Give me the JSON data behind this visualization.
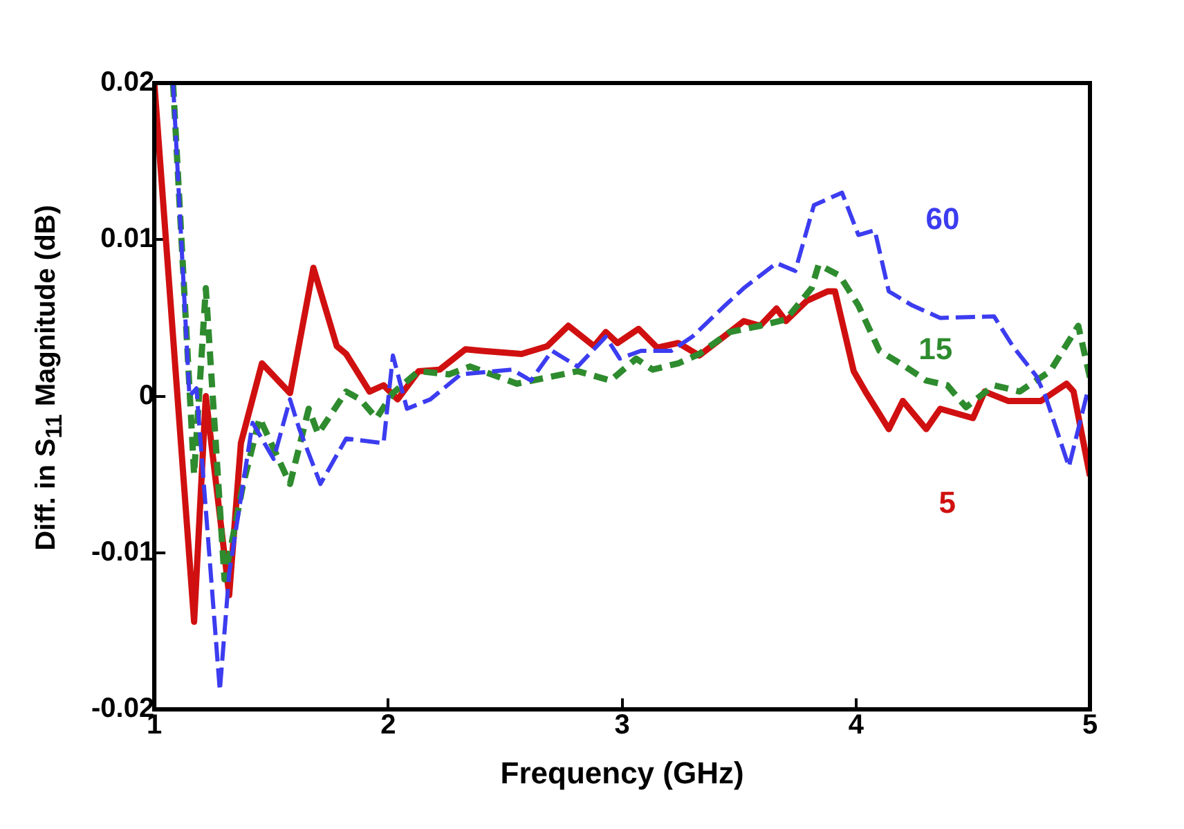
{
  "chart_data": {
    "type": "line",
    "xlabel": "Frequency (GHz)",
    "ylabel": "Diff. in S$_{11}$ Magnitude (dB)",
    "xlim": [
      1,
      5
    ],
    "xticks": [
      1,
      2,
      3,
      4,
      5
    ],
    "ylim": [
      -0.02,
      0.02
    ],
    "yticks": [
      -0.02,
      -0.01,
      0,
      0.01,
      0.02
    ],
    "grid": false,
    "legend": false,
    "marker": "none",
    "series": [
      {
        "name": "60",
        "color": "#3c3cf0",
        "line_style": "dashed",
        "x": [
          1.08,
          1.15,
          1.18,
          1.28,
          1.32,
          1.42,
          1.51,
          1.58,
          1.62,
          1.71,
          1.82,
          1.98,
          2.02,
          2.08,
          2.18,
          2.31,
          2.53,
          2.61,
          2.7,
          2.81,
          2.93,
          2.99,
          3.08,
          3.21,
          3.3,
          3.44,
          3.52,
          3.66,
          3.74,
          3.82,
          3.94,
          4.01,
          4.08,
          4.14,
          4.24,
          4.36,
          4.59,
          4.67,
          4.77,
          4.81,
          4.91,
          4.99
        ],
        "values": [
          0.02,
          0,
          0.0005,
          -0.0188,
          -0.0113,
          -0.0017,
          -0.004,
          -0.0002,
          -0.0021,
          -0.0056,
          -0.0027,
          -0.003,
          0.0026,
          -0.0008,
          -0.0002,
          0.0014,
          0.0017,
          0.001,
          0.0029,
          0.0019,
          0.0038,
          0.0024,
          0.0029,
          0.0029,
          0.0038,
          0.0058,
          0.0069,
          0.0085,
          0.008,
          0.0122,
          0.013,
          0.0103,
          0.0106,
          0.0067,
          0.0058,
          0.005,
          0.0051,
          0.0032,
          0.0013,
          0,
          -0.0045,
          0.0003
        ]
      },
      {
        "name": "15",
        "color": "#2e8b2e",
        "line_style": "dashed",
        "x": [
          1.08,
          1.17,
          1.22,
          1.3,
          1.38,
          1.45,
          1.58,
          1.66,
          1.7,
          1.82,
          1.88,
          1.95,
          2.02,
          2.13,
          2.26,
          2.35,
          2.55,
          2.68,
          2.81,
          2.95,
          3.06,
          3.13,
          3.24,
          3.33,
          3.46,
          3.59,
          3.7,
          3.81,
          3.84,
          3.93,
          4.01,
          4.1,
          4.21,
          4.3,
          4.39,
          4.47,
          4.59,
          4.7,
          4.83,
          4.95,
          5.0
        ],
        "values": [
          0.02,
          -0.005,
          0.0069,
          -0.0117,
          -0.0056,
          -0.0014,
          -0.0056,
          -0.0008,
          -0.0024,
          0.0003,
          -0.0002,
          -0.0014,
          0.0002,
          0.0016,
          0.0014,
          0.0019,
          0.0008,
          0.0012,
          0.0016,
          0.001,
          0.0024,
          0.0017,
          0.0021,
          0.0027,
          0.0041,
          0.0045,
          0.0049,
          0.0069,
          0.0084,
          0.0077,
          0.0058,
          0.0029,
          0.0019,
          0.001,
          0.0007,
          -0.0007,
          0.0007,
          0.0003,
          0.0016,
          0.0045,
          0.0012
        ]
      },
      {
        "name": "5",
        "color": "#d01010",
        "line_style": "solid",
        "x": [
          1.0,
          1.17,
          1.22,
          1.32,
          1.37,
          1.46,
          1.58,
          1.68,
          1.78,
          1.82,
          1.92,
          1.98,
          2.04,
          2.13,
          2.22,
          2.33,
          2.4,
          2.57,
          2.68,
          2.77,
          2.88,
          2.93,
          2.98,
          3.07,
          3.15,
          3.24,
          3.33,
          3.46,
          3.52,
          3.59,
          3.66,
          3.7,
          3.79,
          3.88,
          3.91,
          3.99,
          4.04,
          4.14,
          4.2,
          4.3,
          4.36,
          4.5,
          4.55,
          4.65,
          4.79,
          4.9,
          4.93,
          5.0
        ],
        "values": [
          0.02,
          -0.0144,
          0,
          -0.0127,
          -0.003,
          0.0021,
          0.0002,
          0.0082,
          0.0032,
          0.0027,
          0.0003,
          0.0007,
          -0.0002,
          0.0016,
          0.0017,
          0.003,
          0.0029,
          0.0027,
          0.0032,
          0.0045,
          0.0032,
          0.0041,
          0.0034,
          0.0043,
          0.0031,
          0.0034,
          0.0026,
          0.0041,
          0.0048,
          0.0045,
          0.0056,
          0.0048,
          0.0061,
          0.0067,
          0.0067,
          0.0016,
          0.0003,
          -0.0021,
          -0.0003,
          -0.0021,
          -0.0008,
          -0.0014,
          0.0003,
          -0.0003,
          -0.0003,
          0.0008,
          0.0003,
          -0.0051
        ]
      }
    ]
  }
}
